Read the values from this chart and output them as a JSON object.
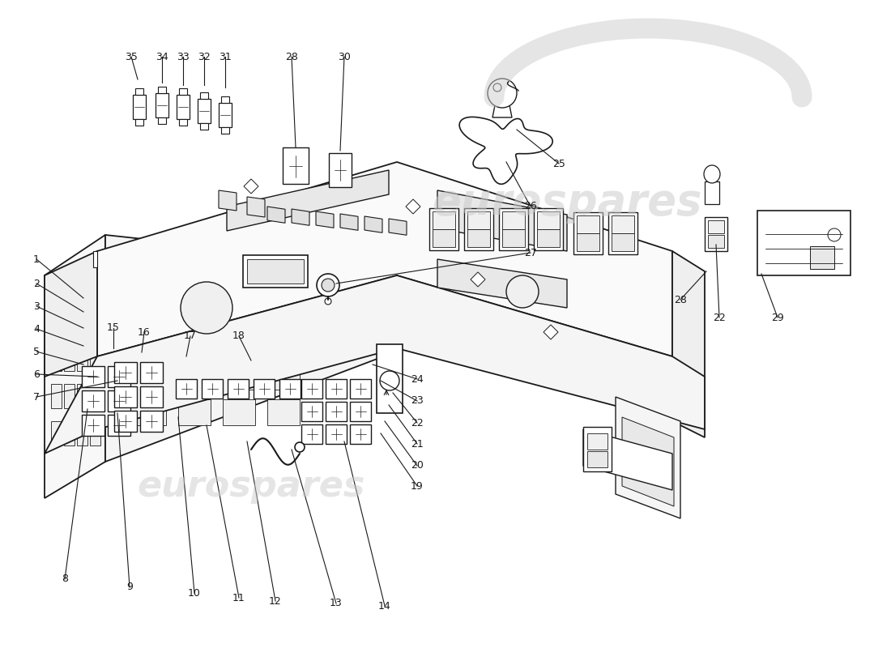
{
  "background_color": "#ffffff",
  "line_color": "#1a1a1a",
  "watermark_color": "#cccccc",
  "watermark_text": "eurospares",
  "figure_size": [
    11.0,
    8.0
  ],
  "dpi": 100,
  "label_font_size": 9,
  "part_numbers": [
    "1",
    "2",
    "3",
    "4",
    "5",
    "6",
    "7",
    "8",
    "9",
    "10",
    "11",
    "12",
    "13",
    "14",
    "15",
    "16",
    "17",
    "18",
    "19",
    "20",
    "21",
    "22",
    "23",
    "24",
    "25",
    "26",
    "27",
    "28",
    "29",
    "30",
    "31",
    "32",
    "33",
    "34",
    "35"
  ]
}
